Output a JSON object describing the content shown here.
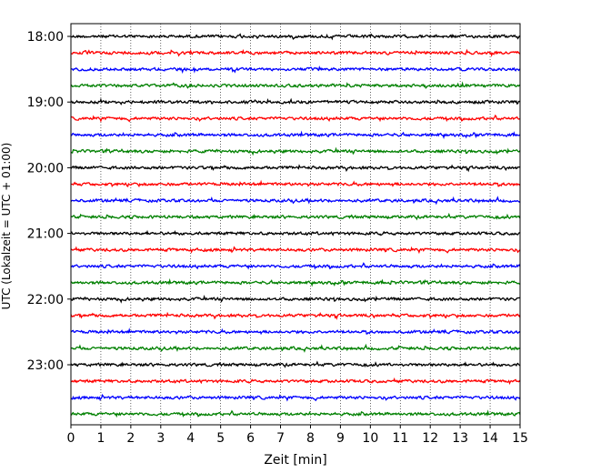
{
  "chart_data": {
    "type": "line",
    "title": "",
    "xlabel": "Zeit  [min]",
    "ylabel": "UTC (Lokalzeit = UTC + 01:00)",
    "xlim": [
      0,
      15
    ],
    "x_ticks": [
      "0",
      "1",
      "2",
      "3",
      "4",
      "5",
      "6",
      "7",
      "8",
      "9",
      "10",
      "11",
      "12",
      "13",
      "14",
      "15"
    ],
    "y_ticks": [
      {
        "label": "18:00",
        "row": 0
      },
      {
        "label": "19:00",
        "row": 4
      },
      {
        "label": "20:00",
        "row": 8
      },
      {
        "label": "21:00",
        "row": 12
      },
      {
        "label": "22:00",
        "row": 16
      },
      {
        "label": "23:00",
        "row": 20
      }
    ],
    "grid": "vertical dotted lines at each minute",
    "row_interval_minutes": 15,
    "row_count": 24,
    "trace_colors": [
      "#000000",
      "#ff0000",
      "#0000ff",
      "#008000"
    ],
    "series": [
      {
        "start": "18:00"
      },
      {
        "start": "18:15"
      },
      {
        "start": "18:30"
      },
      {
        "start": "18:45"
      },
      {
        "start": "19:00"
      },
      {
        "start": "19:15"
      },
      {
        "start": "19:30"
      },
      {
        "start": "19:45"
      },
      {
        "start": "20:00"
      },
      {
        "start": "20:15"
      },
      {
        "start": "20:30"
      },
      {
        "start": "20:45"
      },
      {
        "start": "21:00"
      },
      {
        "start": "21:15"
      },
      {
        "start": "21:30"
      },
      {
        "start": "21:45"
      },
      {
        "start": "22:00"
      },
      {
        "start": "22:15"
      },
      {
        "start": "22:30"
      },
      {
        "start": "22:45"
      },
      {
        "start": "23:00"
      },
      {
        "start": "23:15"
      },
      {
        "start": "23:30"
      },
      {
        "start": "23:45"
      }
    ]
  }
}
